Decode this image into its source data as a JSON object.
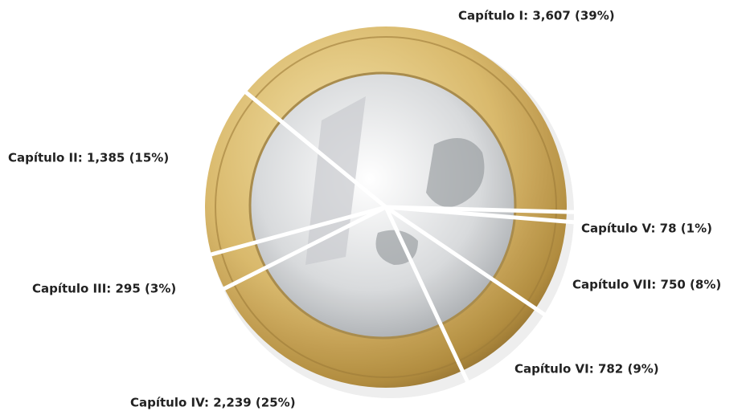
{
  "chart_data": {
    "type": "pie",
    "value_labels": [
      "Capítulo I: 3,607 (39%)",
      "Capítulo V: 78 (1%)",
      "Capítulo VII: 750 (8%)",
      "Capítulo VI: 782 (9%)",
      "Capítulo IV: 2,239 (25%)",
      "Capítulo III: 295 (3%)",
      "Capítulo II: 1,385 (15%)"
    ],
    "values": [
      3607,
      78,
      750,
      782,
      2239,
      295,
      1385
    ]
  }
}
